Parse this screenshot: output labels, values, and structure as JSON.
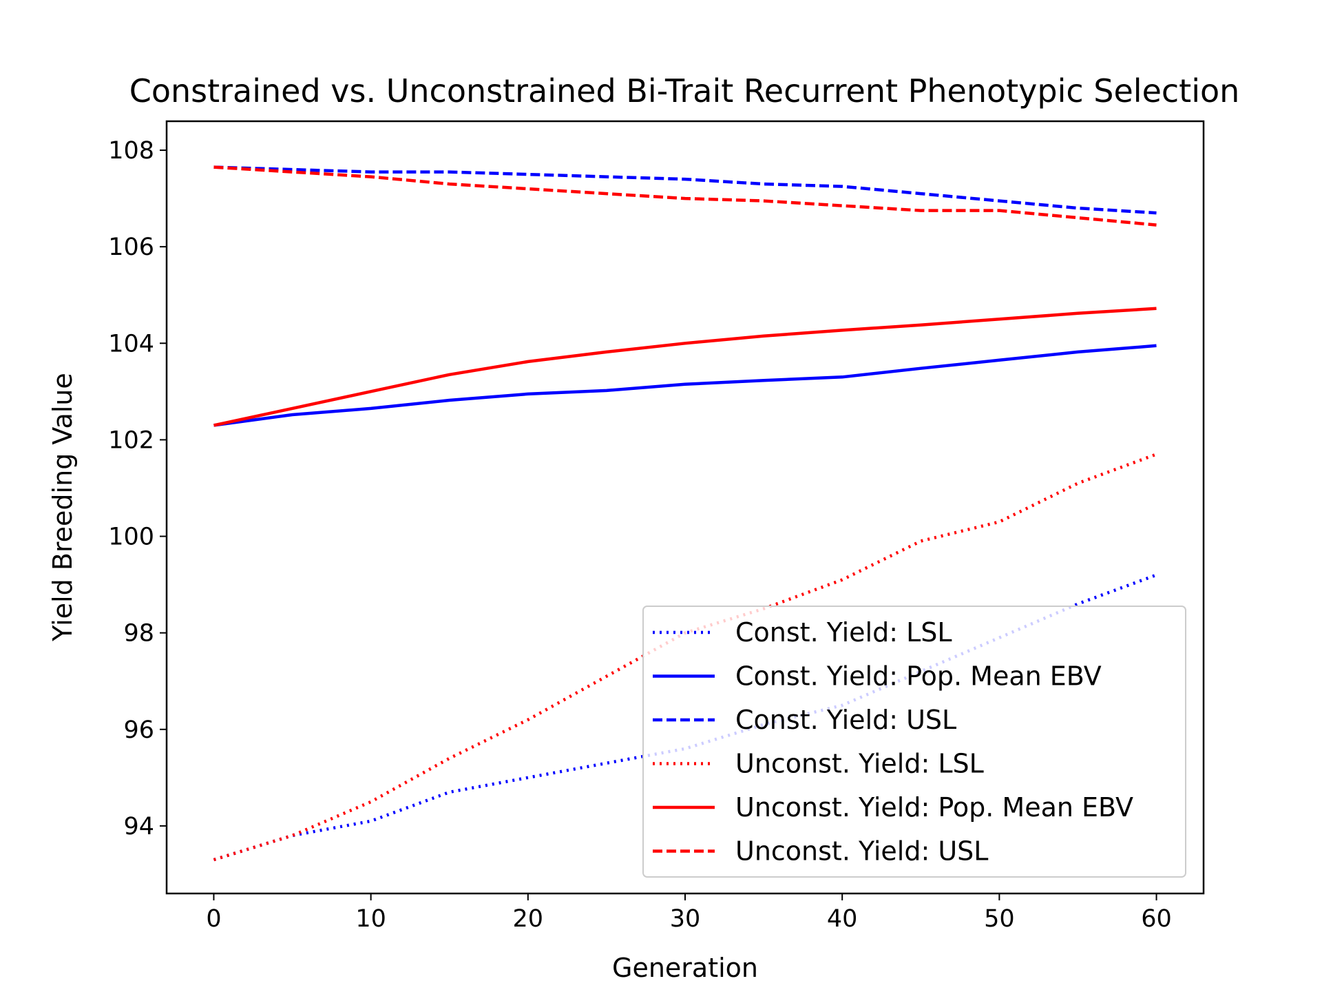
{
  "chart_data": {
    "type": "line",
    "title": "Constrained vs. Unconstrained Bi-Trait Recurrent Phenotypic Selection",
    "xlabel": "Generation",
    "ylabel": "Yield Breeding Value",
    "xlim": [
      -3,
      63
    ],
    "ylim": [
      92.6,
      108.6
    ],
    "xticks": [
      0,
      10,
      20,
      30,
      40,
      50,
      60
    ],
    "yticks": [
      94,
      96,
      98,
      100,
      102,
      104,
      106,
      108
    ],
    "grid": false,
    "legend_position": "lower-right",
    "x": [
      0,
      5,
      10,
      15,
      20,
      25,
      30,
      35,
      40,
      45,
      50,
      55,
      60
    ],
    "series": [
      {
        "name": "Const. Yield: LSL",
        "color": "#0000ff",
        "style": "dotted",
        "values": [
          93.3,
          93.8,
          94.1,
          94.7,
          95.0,
          95.3,
          95.6,
          96.1,
          96.5,
          97.2,
          97.9,
          98.6,
          99.2
        ]
      },
      {
        "name": "Const. Yield: Pop. Mean EBV",
        "color": "#0000ff",
        "style": "solid",
        "values": [
          102.3,
          102.52,
          102.65,
          102.82,
          102.95,
          103.02,
          103.15,
          103.23,
          103.3,
          103.48,
          103.65,
          103.82,
          103.95
        ]
      },
      {
        "name": "Const. Yield: USL",
        "color": "#0000ff",
        "style": "dashed",
        "values": [
          107.65,
          107.6,
          107.55,
          107.55,
          107.5,
          107.45,
          107.4,
          107.3,
          107.25,
          107.1,
          106.95,
          106.8,
          106.7
        ]
      },
      {
        "name": "Unconst. Yield: LSL",
        "color": "#ff0000",
        "style": "dotted",
        "values": [
          93.3,
          93.8,
          94.5,
          95.4,
          96.2,
          97.1,
          98.0,
          98.5,
          99.1,
          99.9,
          100.3,
          101.1,
          101.7
        ]
      },
      {
        "name": "Unconst. Yield: Pop. Mean EBV",
        "color": "#ff0000",
        "style": "solid",
        "values": [
          102.3,
          102.65,
          103.0,
          103.35,
          103.62,
          103.82,
          104.0,
          104.15,
          104.27,
          104.38,
          104.5,
          104.62,
          104.72
        ]
      },
      {
        "name": "Unconst. Yield: USL",
        "color": "#ff0000",
        "style": "dashed",
        "values": [
          107.65,
          107.55,
          107.45,
          107.3,
          107.2,
          107.1,
          107.0,
          106.95,
          106.85,
          106.75,
          106.75,
          106.6,
          106.45
        ]
      }
    ]
  }
}
